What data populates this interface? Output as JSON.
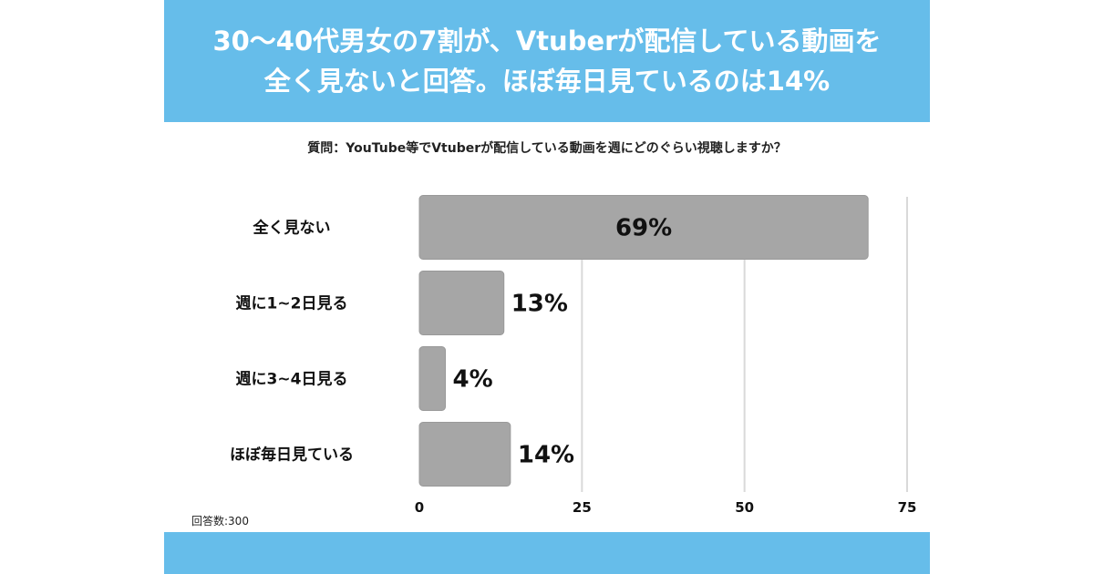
{
  "header": {
    "title": "30〜40代男女の7割が、Vtuberが配信している動画を\n全く見ないと回答。ほぼ毎日見ているのは14%"
  },
  "question": "質問：YouTube等でVtuberが配信している動画を週にどのぐらい視聴しますか？",
  "respondents": "回答数:300",
  "colors": {
    "banner": "#66bdea",
    "bar": "#a6a6a6",
    "bar_border": "#999999",
    "grid": "#d9d9d9"
  },
  "chart_data": {
    "type": "bar",
    "orientation": "horizontal",
    "categories": [
      "全く見ない",
      "週に1~2日見る",
      "週に3~4日見る",
      "ほぼ毎日見ている"
    ],
    "values": [
      69,
      13,
      4,
      14
    ],
    "data_labels": [
      "69%",
      "13%",
      "4%",
      "14%"
    ],
    "xticks": [
      "0",
      "25",
      "50",
      "75"
    ],
    "xtick_values": [
      0,
      25,
      50,
      75
    ],
    "xlim": [
      0,
      75
    ],
    "grid": true,
    "legend": "none",
    "title": "",
    "xlabel": "",
    "ylabel": ""
  }
}
